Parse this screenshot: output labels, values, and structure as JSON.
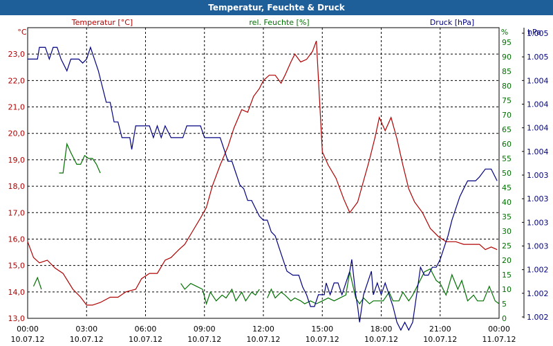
{
  "chart_data": {
    "type": "line",
    "title": "Temperatur, Feuchte & Druck",
    "x_hours": [
      0,
      24
    ],
    "x_ticks": [
      {
        "h": 0,
        "time": "00:00",
        "date": "10.07.12"
      },
      {
        "h": 3,
        "time": "03:00",
        "date": "10.07.12"
      },
      {
        "h": 6,
        "time": "06:00",
        "date": "10.07.12"
      },
      {
        "h": 9,
        "time": "09:00",
        "date": "10.07.12"
      },
      {
        "h": 12,
        "time": "12:00",
        "date": "10.07.12"
      },
      {
        "h": 15,
        "time": "15:00",
        "date": "10.07.12"
      },
      {
        "h": 18,
        "time": "18:00",
        "date": "10.07.12"
      },
      {
        "h": 21,
        "time": "21:00",
        "date": "10.07.12"
      },
      {
        "h": 24,
        "time": "00:00",
        "date": "11.07.12"
      }
    ],
    "axes": {
      "temperature": {
        "label": "Temperatur [°C]",
        "unit": "°C",
        "range": [
          13.0,
          24.0
        ],
        "ticks": [
          "13,0",
          "14,0",
          "15,0",
          "16,0",
          "17,0",
          "18,0",
          "19,0",
          "20,0",
          "21,0",
          "22,0",
          "23,0"
        ],
        "color": "#b00000"
      },
      "humidity": {
        "label": "rel. Feuchte [%]",
        "unit": "%",
        "range": [
          0,
          100
        ],
        "ticks": [
          "0",
          "5",
          "10",
          "15",
          "20",
          "25",
          "30",
          "35",
          "40",
          "45",
          "50",
          "55",
          "60",
          "65",
          "70",
          "75",
          "80",
          "85",
          "90",
          "95"
        ],
        "color": "#007000"
      },
      "pressure": {
        "label": "Druck [hPa]",
        "unit": "hPa",
        "range": [
          1001.8,
          1005.5
        ],
        "ticks": [
          "1.002",
          "1.002",
          "1.002",
          "1.003",
          "1.003",
          "1.003",
          "1.003",
          "1.004",
          "1.004",
          "1.004",
          "1.004",
          "1.005",
          "1.005"
        ],
        "color": "#000080"
      }
    },
    "series": [
      {
        "name": "Temperatur",
        "axis": "temperature",
        "color": "#b00000",
        "points": [
          [
            0,
            15.9
          ],
          [
            0.3,
            15.3
          ],
          [
            0.6,
            15.1
          ],
          [
            1.0,
            15.2
          ],
          [
            1.4,
            14.9
          ],
          [
            1.8,
            14.7
          ],
          [
            2.3,
            14.1
          ],
          [
            2.7,
            13.8
          ],
          [
            3.0,
            13.5
          ],
          [
            3.3,
            13.5
          ],
          [
            3.7,
            13.6
          ],
          [
            4.2,
            13.8
          ],
          [
            4.6,
            13.8
          ],
          [
            5.0,
            14.0
          ],
          [
            5.5,
            14.1
          ],
          [
            5.8,
            14.5
          ],
          [
            6.2,
            14.7
          ],
          [
            6.6,
            14.7
          ],
          [
            7.0,
            15.2
          ],
          [
            7.3,
            15.3
          ],
          [
            7.7,
            15.6
          ],
          [
            8.0,
            15.8
          ],
          [
            8.4,
            16.3
          ],
          [
            8.8,
            16.8
          ],
          [
            9.1,
            17.2
          ],
          [
            9.4,
            18.0
          ],
          [
            9.8,
            18.8
          ],
          [
            10.2,
            19.5
          ],
          [
            10.5,
            20.2
          ],
          [
            10.9,
            20.9
          ],
          [
            11.2,
            20.8
          ],
          [
            11.5,
            21.4
          ],
          [
            11.8,
            21.7
          ],
          [
            12.0,
            22.0
          ],
          [
            12.3,
            22.2
          ],
          [
            12.6,
            22.2
          ],
          [
            12.9,
            21.9
          ],
          [
            13.1,
            22.2
          ],
          [
            13.4,
            22.7
          ],
          [
            13.6,
            23.0
          ],
          [
            13.9,
            22.7
          ],
          [
            14.2,
            22.8
          ],
          [
            14.5,
            23.1
          ],
          [
            14.7,
            23.5
          ],
          [
            15.0,
            19.3
          ],
          [
            15.3,
            18.8
          ],
          [
            15.7,
            18.3
          ],
          [
            16.1,
            17.5
          ],
          [
            16.4,
            17.0
          ],
          [
            16.8,
            17.4
          ],
          [
            17.1,
            18.2
          ],
          [
            17.4,
            19.0
          ],
          [
            17.7,
            19.9
          ],
          [
            17.9,
            20.6
          ],
          [
            18.2,
            20.1
          ],
          [
            18.5,
            20.6
          ],
          [
            18.8,
            19.8
          ],
          [
            19.1,
            18.8
          ],
          [
            19.4,
            17.9
          ],
          [
            19.7,
            17.4
          ],
          [
            20.1,
            17.0
          ],
          [
            20.5,
            16.4
          ],
          [
            20.9,
            16.1
          ],
          [
            21.3,
            15.9
          ],
          [
            21.8,
            15.9
          ],
          [
            22.2,
            15.8
          ],
          [
            22.7,
            15.8
          ],
          [
            23.0,
            15.8
          ],
          [
            23.3,
            15.6
          ],
          [
            23.6,
            15.7
          ],
          [
            23.9,
            15.6
          ]
        ]
      },
      {
        "name": "Feuchte",
        "axis": "humidity",
        "color": "#007000",
        "segments": [
          [
            [
              0.3,
              11
            ],
            [
              0.5,
              14
            ],
            [
              0.7,
              10
            ]
          ],
          [
            [
              1.6,
              50
            ],
            [
              1.8,
              50
            ],
            [
              2.0,
              60
            ],
            [
              2.2,
              57
            ],
            [
              2.5,
              53
            ],
            [
              2.7,
              53
            ],
            [
              2.9,
              56
            ],
            [
              3.1,
              55
            ],
            [
              3.3,
              55
            ],
            [
              3.5,
              53
            ],
            [
              3.7,
              50
            ]
          ],
          [
            [
              7.8,
              12
            ],
            [
              8.0,
              10
            ],
            [
              8.3,
              12
            ],
            [
              8.6,
              11
            ],
            [
              8.9,
              10
            ],
            [
              9.1,
              5
            ],
            [
              9.3,
              9
            ],
            [
              9.6,
              6
            ],
            [
              9.9,
              8
            ],
            [
              10.1,
              7
            ],
            [
              10.4,
              10
            ],
            [
              10.6,
              6
            ],
            [
              10.9,
              9
            ],
            [
              11.1,
              6
            ],
            [
              11.4,
              9
            ],
            [
              11.6,
              8
            ],
            [
              11.8,
              10
            ]
          ],
          [
            [
              12.2,
              7
            ],
            [
              12.4,
              10
            ],
            [
              12.6,
              7
            ],
            [
              12.9,
              9
            ],
            [
              13.1,
              8
            ],
            [
              13.4,
              6
            ],
            [
              13.6,
              7
            ],
            [
              13.9,
              6
            ],
            [
              14.1,
              5
            ],
            [
              14.4,
              6
            ],
            [
              14.7,
              5
            ],
            [
              15.0,
              6
            ],
            [
              15.3,
              7
            ],
            [
              15.6,
              6
            ],
            [
              15.9,
              7
            ],
            [
              16.2,
              8
            ],
            [
              16.4,
              16
            ],
            [
              16.7,
              7
            ],
            [
              16.9,
              5
            ],
            [
              17.1,
              7
            ],
            [
              17.4,
              5
            ],
            [
              17.6,
              6
            ],
            [
              17.9,
              6
            ],
            [
              18.1,
              6
            ],
            [
              18.4,
              9
            ],
            [
              18.6,
              6
            ],
            [
              18.9,
              6
            ],
            [
              19.1,
              9
            ],
            [
              19.4,
              6
            ],
            [
              19.6,
              8
            ],
            [
              19.9,
              12
            ],
            [
              20.2,
              16
            ],
            [
              20.5,
              17
            ],
            [
              20.8,
              13
            ],
            [
              21.0,
              12
            ],
            [
              21.3,
              8
            ],
            [
              21.6,
              15
            ],
            [
              21.9,
              10
            ],
            [
              22.1,
              13
            ],
            [
              22.4,
              6
            ],
            [
              22.7,
              8
            ],
            [
              22.9,
              6
            ],
            [
              23.2,
              6
            ],
            [
              23.5,
              11
            ],
            [
              23.8,
              6
            ],
            [
              24.0,
              5
            ]
          ]
        ]
      },
      {
        "name": "Druck",
        "axis": "pressure",
        "color": "#000080",
        "points": [
          [
            0,
            1005.1
          ],
          [
            0.5,
            1005.1
          ],
          [
            0.6,
            1005.25
          ],
          [
            0.9,
            1005.25
          ],
          [
            1.1,
            1005.1
          ],
          [
            1.3,
            1005.25
          ],
          [
            1.5,
            1005.25
          ],
          [
            1.7,
            1005.1
          ],
          [
            2.0,
            1004.95
          ],
          [
            2.2,
            1005.1
          ],
          [
            2.6,
            1005.1
          ],
          [
            2.8,
            1005.05
          ],
          [
            3.0,
            1005.1
          ],
          [
            3.2,
            1005.25
          ],
          [
            3.4,
            1005.1
          ],
          [
            3.6,
            1004.95
          ],
          [
            3.8,
            1004.75
          ],
          [
            4.0,
            1004.55
          ],
          [
            4.2,
            1004.55
          ],
          [
            4.4,
            1004.3
          ],
          [
            4.6,
            1004.3
          ],
          [
            4.8,
            1004.1
          ],
          [
            5.2,
            1004.1
          ],
          [
            5.3,
            1003.95
          ],
          [
            5.5,
            1004.25
          ],
          [
            6.2,
            1004.25
          ],
          [
            6.4,
            1004.1
          ],
          [
            6.6,
            1004.25
          ],
          [
            6.8,
            1004.1
          ],
          [
            7.0,
            1004.25
          ],
          [
            7.3,
            1004.1
          ],
          [
            7.9,
            1004.1
          ],
          [
            8.1,
            1004.25
          ],
          [
            8.8,
            1004.25
          ],
          [
            9.0,
            1004.1
          ],
          [
            9.8,
            1004.1
          ],
          [
            10.0,
            1003.95
          ],
          [
            10.2,
            1003.8
          ],
          [
            10.4,
            1003.8
          ],
          [
            10.6,
            1003.65
          ],
          [
            10.8,
            1003.5
          ],
          [
            11.0,
            1003.45
          ],
          [
            11.2,
            1003.3
          ],
          [
            11.4,
            1003.3
          ],
          [
            11.6,
            1003.2
          ],
          [
            11.8,
            1003.1
          ],
          [
            12.0,
            1003.05
          ],
          [
            12.2,
            1003.05
          ],
          [
            12.4,
            1002.9
          ],
          [
            12.6,
            1002.85
          ],
          [
            12.8,
            1002.7
          ],
          [
            13.0,
            1002.55
          ],
          [
            13.2,
            1002.4
          ],
          [
            13.5,
            1002.35
          ],
          [
            13.8,
            1002.35
          ],
          [
            14.0,
            1002.2
          ],
          [
            14.2,
            1002.1
          ],
          [
            14.4,
            1001.95
          ],
          [
            14.6,
            1001.95
          ],
          [
            14.8,
            1002.1
          ],
          [
            15.1,
            1002.1
          ],
          [
            15.2,
            1002.25
          ],
          [
            15.4,
            1002.1
          ],
          [
            15.6,
            1002.25
          ],
          [
            15.8,
            1002.25
          ],
          [
            16.0,
            1002.1
          ],
          [
            16.2,
            1002.25
          ],
          [
            16.4,
            1002.4
          ],
          [
            16.5,
            1002.55
          ],
          [
            16.7,
            1002.1
          ],
          [
            16.8,
            1001.95
          ],
          [
            16.9,
            1001.75
          ],
          [
            17.1,
            1002.1
          ],
          [
            17.3,
            1002.25
          ],
          [
            17.5,
            1002.4
          ],
          [
            17.6,
            1002.1
          ],
          [
            17.8,
            1002.25
          ],
          [
            18.0,
            1002.1
          ],
          [
            18.2,
            1002.25
          ],
          [
            18.4,
            1002.1
          ],
          [
            18.6,
            1001.95
          ],
          [
            18.8,
            1001.75
          ],
          [
            19.0,
            1001.65
          ],
          [
            19.2,
            1001.75
          ],
          [
            19.4,
            1001.65
          ],
          [
            19.6,
            1001.75
          ],
          [
            19.8,
            1002.1
          ],
          [
            20.0,
            1002.45
          ],
          [
            20.2,
            1002.35
          ],
          [
            20.4,
            1002.35
          ],
          [
            20.6,
            1002.45
          ],
          [
            20.8,
            1002.45
          ],
          [
            21.0,
            1002.55
          ],
          [
            21.2,
            1002.7
          ],
          [
            21.4,
            1002.85
          ],
          [
            21.6,
            1003.05
          ],
          [
            21.8,
            1003.2
          ],
          [
            22.0,
            1003.35
          ],
          [
            22.2,
            1003.45
          ],
          [
            22.4,
            1003.55
          ],
          [
            22.6,
            1003.55
          ],
          [
            22.8,
            1003.55
          ],
          [
            23.0,
            1003.6
          ],
          [
            23.3,
            1003.7
          ],
          [
            23.6,
            1003.7
          ],
          [
            23.9,
            1003.55
          ]
        ]
      }
    ]
  }
}
